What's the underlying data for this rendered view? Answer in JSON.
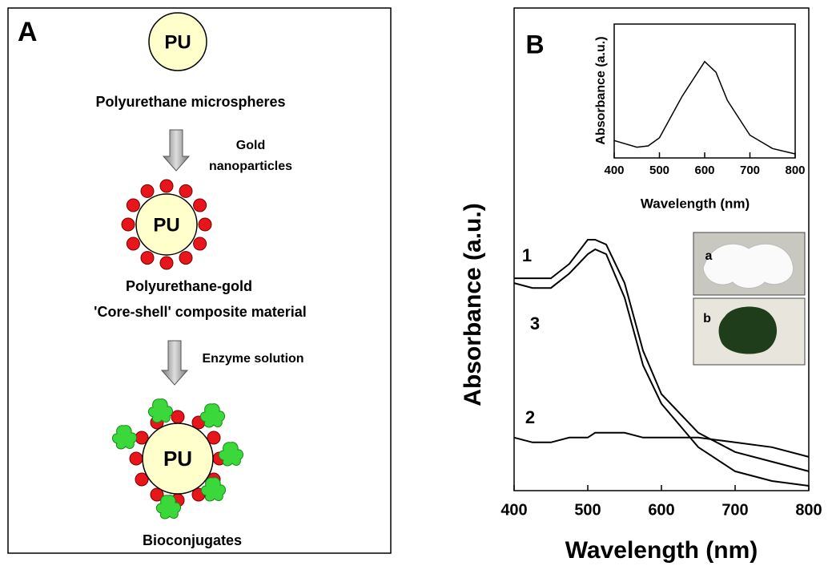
{
  "panel_a": {
    "label": "A",
    "core": "PU",
    "step1_caption": "Polyurethane microspheres",
    "step1_reagent": [
      "Gold",
      "nanoparticles"
    ],
    "step2_core": "PU",
    "step2_caption": [
      "Polyurethane-gold",
      "'Core-shell' composite material"
    ],
    "step2_reagent": "Enzyme solution",
    "step3_core": "PU",
    "step3_caption": "Bioconjugates"
  },
  "photo_labels": [
    "a",
    "b"
  ],
  "chart_data": [
    {
      "type": "line",
      "panel_label": "B",
      "xlabel": "Wavelength (nm)",
      "ylabel": "Absorbance (a.u.)",
      "x": [
        400,
        425,
        450,
        475,
        500,
        510,
        525,
        550,
        575,
        600,
        650,
        700,
        750,
        800
      ],
      "series": [
        {
          "name": "1",
          "color": "#000000",
          "values": [
            0.44,
            0.44,
            0.44,
            0.47,
            0.52,
            0.52,
            0.51,
            0.43,
            0.29,
            0.2,
            0.12,
            0.08,
            0.06,
            0.04
          ]
        },
        {
          "name": "2",
          "color": "#000000",
          "values": [
            0.11,
            0.1,
            0.1,
            0.11,
            0.11,
            0.12,
            0.12,
            0.12,
            0.11,
            0.11,
            0.11,
            0.1,
            0.09,
            0.07
          ]
        },
        {
          "name": "3",
          "color": "#000000",
          "values": [
            0.43,
            0.42,
            0.42,
            0.45,
            0.49,
            0.5,
            0.49,
            0.4,
            0.26,
            0.18,
            0.09,
            0.04,
            0.02,
            0.01
          ]
        }
      ],
      "xlim": [
        400,
        800
      ],
      "xticks": [
        400,
        500,
        600,
        700,
        800
      ],
      "ylim": [
        0,
        1
      ]
    },
    {
      "type": "line",
      "xlabel": "Wavelength (nm)",
      "ylabel": "Absorbance (a.u.)",
      "color": "#000000",
      "x": [
        400,
        450,
        475,
        500,
        550,
        600,
        625,
        650,
        700,
        750,
        800
      ],
      "values": [
        0.13,
        0.08,
        0.09,
        0.15,
        0.46,
        0.72,
        0.64,
        0.43,
        0.17,
        0.07,
        0.03
      ],
      "xlim": [
        400,
        800
      ],
      "xticks": [
        400,
        500,
        600,
        700,
        800
      ],
      "ylim": [
        0,
        1
      ]
    }
  ]
}
